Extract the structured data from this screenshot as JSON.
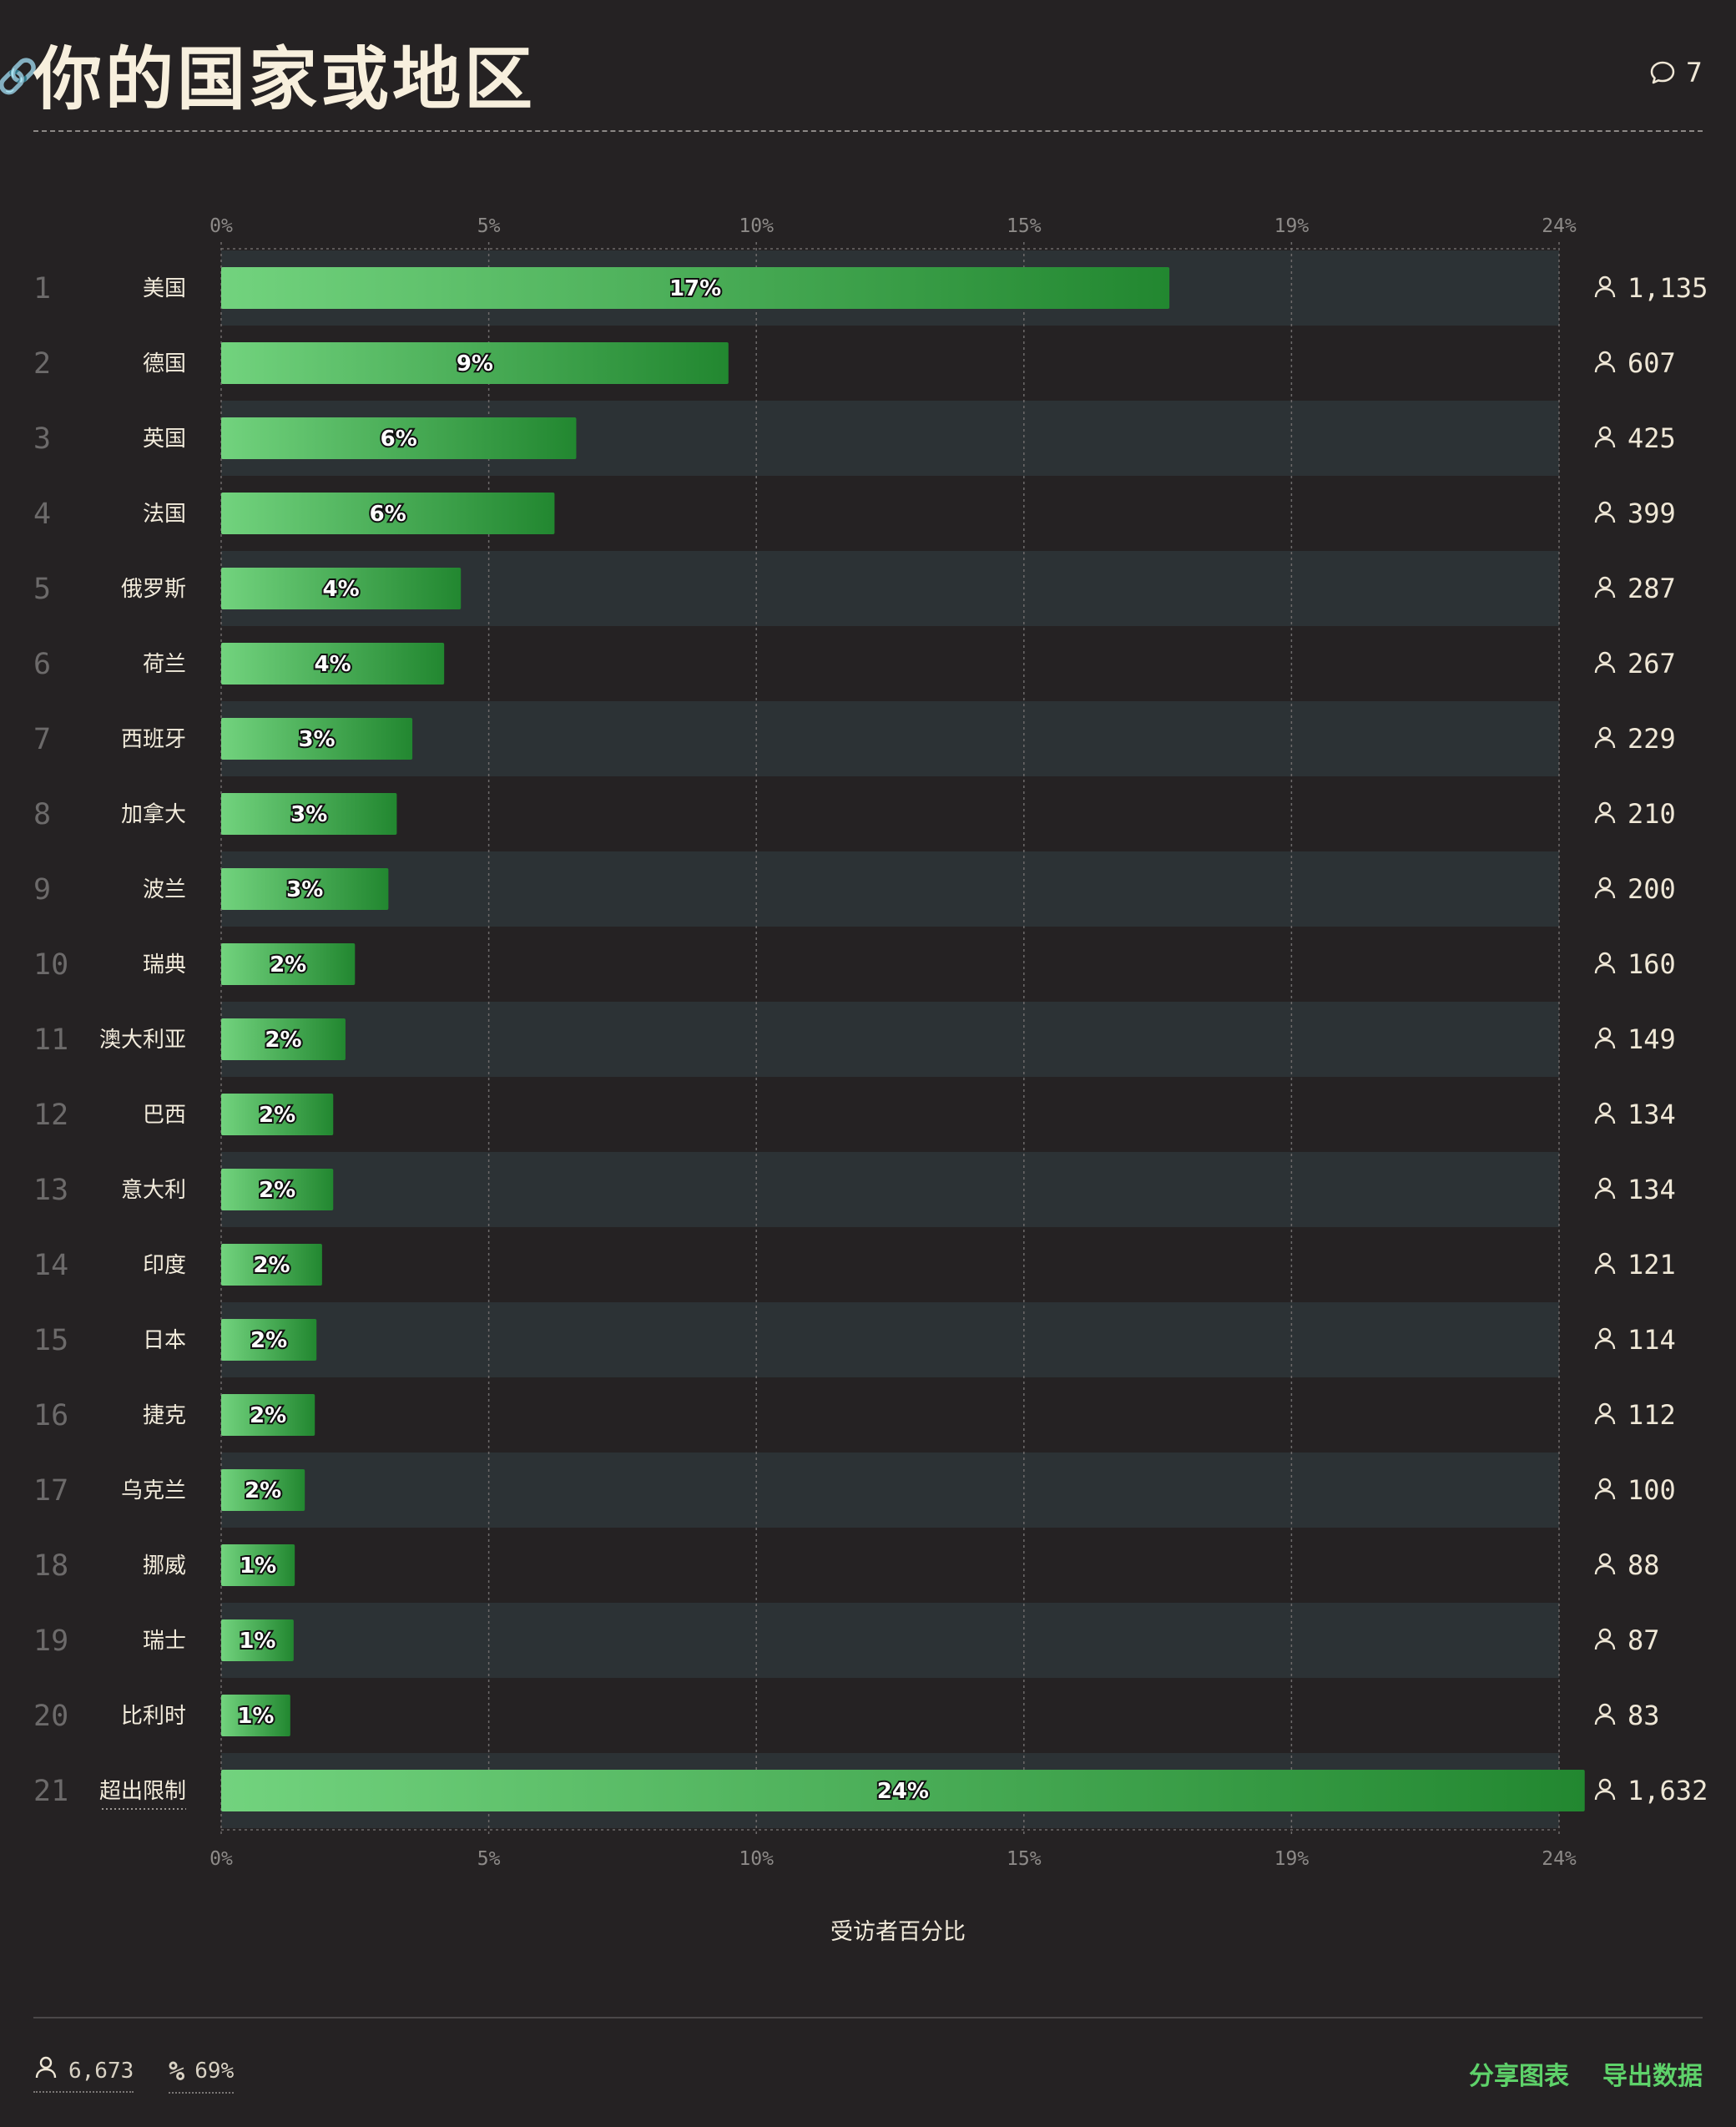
{
  "header": {
    "title": "你的国家或地区",
    "comment_count": "7"
  },
  "chart_data": {
    "type": "bar",
    "orientation": "horizontal",
    "title": "你的国家或地区",
    "xlabel": "受访者百分比",
    "xlim": [
      0,
      24
    ],
    "x_ticks": [
      "0%",
      "5%",
      "10%",
      "15%",
      "19%",
      "24%"
    ],
    "grid": true,
    "ranks": [
      "1",
      "2",
      "3",
      "4",
      "5",
      "6",
      "7",
      "8",
      "9",
      "10",
      "11",
      "12",
      "13",
      "14",
      "15",
      "16",
      "17",
      "18",
      "19",
      "20",
      "21"
    ],
    "categories": [
      "美国",
      "德国",
      "英国",
      "法国",
      "俄罗斯",
      "荷兰",
      "西班牙",
      "加拿大",
      "波兰",
      "瑞典",
      "澳大利亚",
      "巴西",
      "意大利",
      "印度",
      "日本",
      "捷克",
      "乌克兰",
      "挪威",
      "瑞士",
      "比利时",
      "超出限制"
    ],
    "values": [
      17.01,
      9.1,
      6.37,
      5.98,
      4.3,
      4.0,
      3.43,
      3.15,
      3.0,
      2.4,
      2.23,
      2.01,
      2.01,
      1.81,
      1.71,
      1.68,
      1.5,
      1.32,
      1.3,
      1.24,
      24.46
    ],
    "value_labels": [
      "17%",
      "9%",
      "6%",
      "6%",
      "4%",
      "4%",
      "3%",
      "3%",
      "3%",
      "2%",
      "2%",
      "2%",
      "2%",
      "2%",
      "2%",
      "2%",
      "2%",
      "1%",
      "1%",
      "1%",
      "24%"
    ],
    "respondent_counts": [
      "1,135",
      "607",
      "425",
      "399",
      "287",
      "267",
      "229",
      "210",
      "200",
      "160",
      "149",
      "134",
      "134",
      "121",
      "114",
      "112",
      "100",
      "88",
      "87",
      "83",
      "1,632"
    ],
    "colors": {
      "bar_start": "#72d37e",
      "bar_end": "#228730",
      "row_band": "#2c3235",
      "grid": "#6e6b6b"
    }
  },
  "footer": {
    "total_respondents": "6,673",
    "response_rate": "69%",
    "share_label": "分享图表",
    "export_label": "导出数据"
  }
}
